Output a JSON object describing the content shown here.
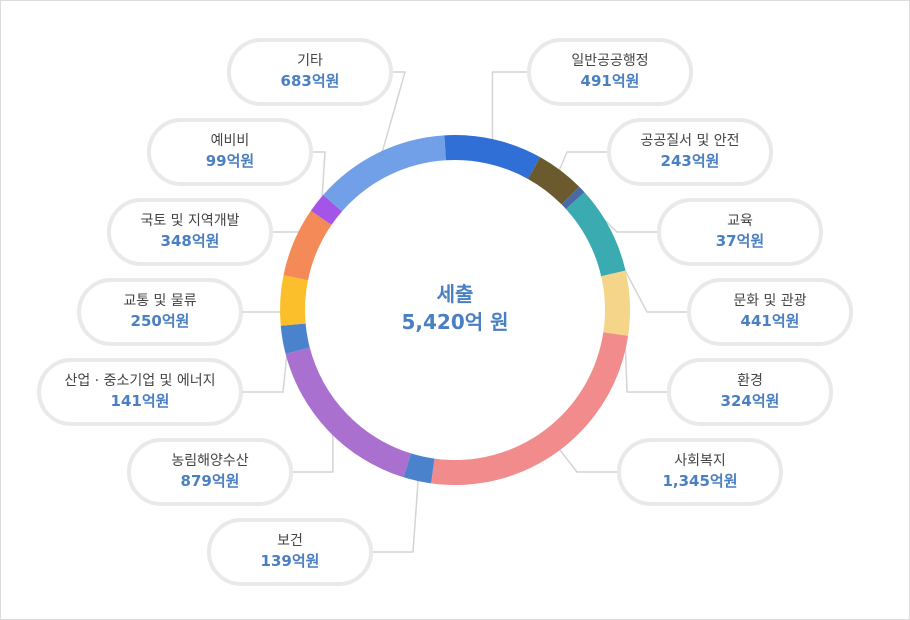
{
  "chart_data": {
    "type": "donut",
    "total": {
      "label": "세출",
      "value": "5,420억 원"
    },
    "unit": "억원",
    "series": [
      {
        "name": "일반공공행정",
        "value": 491,
        "display": "491억원",
        "color": "#2f6fd6"
      },
      {
        "name": "공공질서 및 안전",
        "value": 243,
        "display": "243억원",
        "color": "#6b5a2e"
      },
      {
        "name": "교육",
        "value": 37,
        "display": "37억원",
        "color": "#4a6aa5"
      },
      {
        "name": "문화 및 관광",
        "value": 441,
        "display": "441억원",
        "color": "#3aacb1"
      },
      {
        "name": "환경",
        "value": 324,
        "display": "324억원",
        "color": "#f5d58a"
      },
      {
        "name": "사회복지",
        "value": 1345,
        "display": "1,345억원",
        "color": "#f28b8c"
      },
      {
        "name": "보건",
        "value": 139,
        "display": "139억원",
        "color": "#4a82cc"
      },
      {
        "name": "농림해양수산",
        "value": 879,
        "display": "879억원",
        "color": "#a970cf"
      },
      {
        "name": "산업 · 중소기업 및 에너지",
        "value": 141,
        "display": "141억원",
        "color": "#4a82cc"
      },
      {
        "name": "교통 및 물류",
        "value": 250,
        "display": "250억원",
        "color": "#fbbf2c"
      },
      {
        "name": "국토 및 지역개발",
        "value": 348,
        "display": "348억원",
        "color": "#f38a58"
      },
      {
        "name": "예비비",
        "value": 99,
        "display": "99억원",
        "color": "#a454e6"
      },
      {
        "name": "기타",
        "value": 683,
        "display": "683억원",
        "color": "#71a0e8"
      }
    ]
  }
}
